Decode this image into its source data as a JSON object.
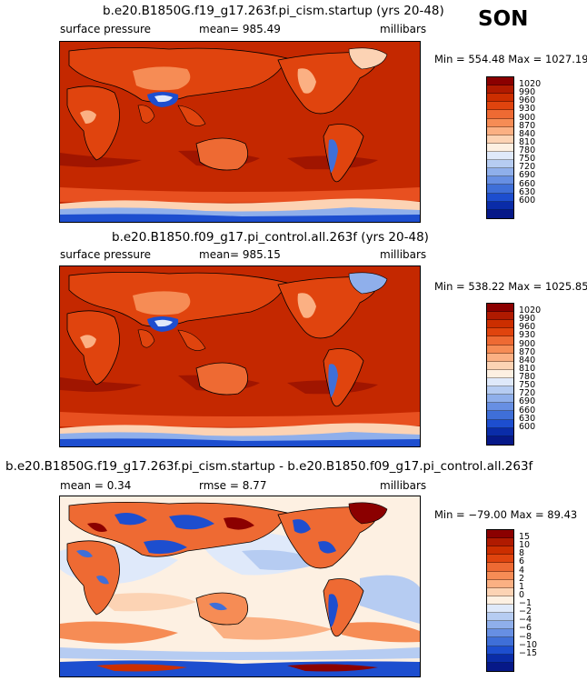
{
  "season": "SON",
  "palettes": {
    "abs": [
      "#8b0000",
      "#b01a00",
      "#cc2e00",
      "#e0440e",
      "#ee6a33",
      "#f68c55",
      "#fbb083",
      "#fcd3b4",
      "#fdf0e2",
      "#dfe9fa",
      "#b6ccf2",
      "#8fafeb",
      "#678fe3",
      "#3f6fd8",
      "#1d4ecf",
      "#0a2ca8",
      "#061888"
    ],
    "diff": [
      "#8b0000",
      "#b01a00",
      "#cc2e00",
      "#e0440e",
      "#ee6a33",
      "#f68c55",
      "#fbb083",
      "#fcd3b4",
      "#fdf0e2",
      "#dfe9fa",
      "#b6ccf2",
      "#8fafeb",
      "#678fe3",
      "#3f6fd8",
      "#1d4ecf",
      "#0a2ca8",
      "#061888"
    ]
  },
  "panels": [
    {
      "title": "b.e20.B1850G.f19_g17.263f.pi_cism.startup (yrs 20-48)",
      "left_label": "surface pressure",
      "center_label": "mean= 985.49",
      "right_label": "millibars",
      "minmax": "Min = 554.48 Max = 1027.19",
      "colorbar_labels": [
        "1020",
        "990",
        "960",
        "930",
        "900",
        "870",
        "840",
        "810",
        "780",
        "750",
        "720",
        "690",
        "660",
        "630",
        "600"
      ]
    },
    {
      "title": "b.e20.B1850.f09_g17.pi_control.all.263f (yrs 20-48)",
      "left_label": "surface pressure",
      "center_label": "mean= 985.15",
      "right_label": "millibars",
      "minmax": "Min = 538.22 Max = 1025.85",
      "colorbar_labels": [
        "1020",
        "990",
        "960",
        "930",
        "900",
        "870",
        "840",
        "810",
        "780",
        "750",
        "720",
        "690",
        "660",
        "630",
        "600"
      ]
    },
    {
      "title": "b.e20.B1850G.f19_g17.263f.pi_cism.startup - b.e20.B1850.f09_g17.pi_control.all.263f",
      "left_label": "mean =    0.34",
      "center_label": "rmse =    8.77",
      "right_label": "millibars",
      "minmax": "Min = −79.00 Max =   89.43",
      "colorbar_labels": [
        "15",
        "10",
        "8",
        "6",
        "4",
        "2",
        "1",
        "0",
        "−1",
        "−2",
        "−4",
        "−6",
        "−8",
        "−10",
        "−15"
      ]
    }
  ]
}
